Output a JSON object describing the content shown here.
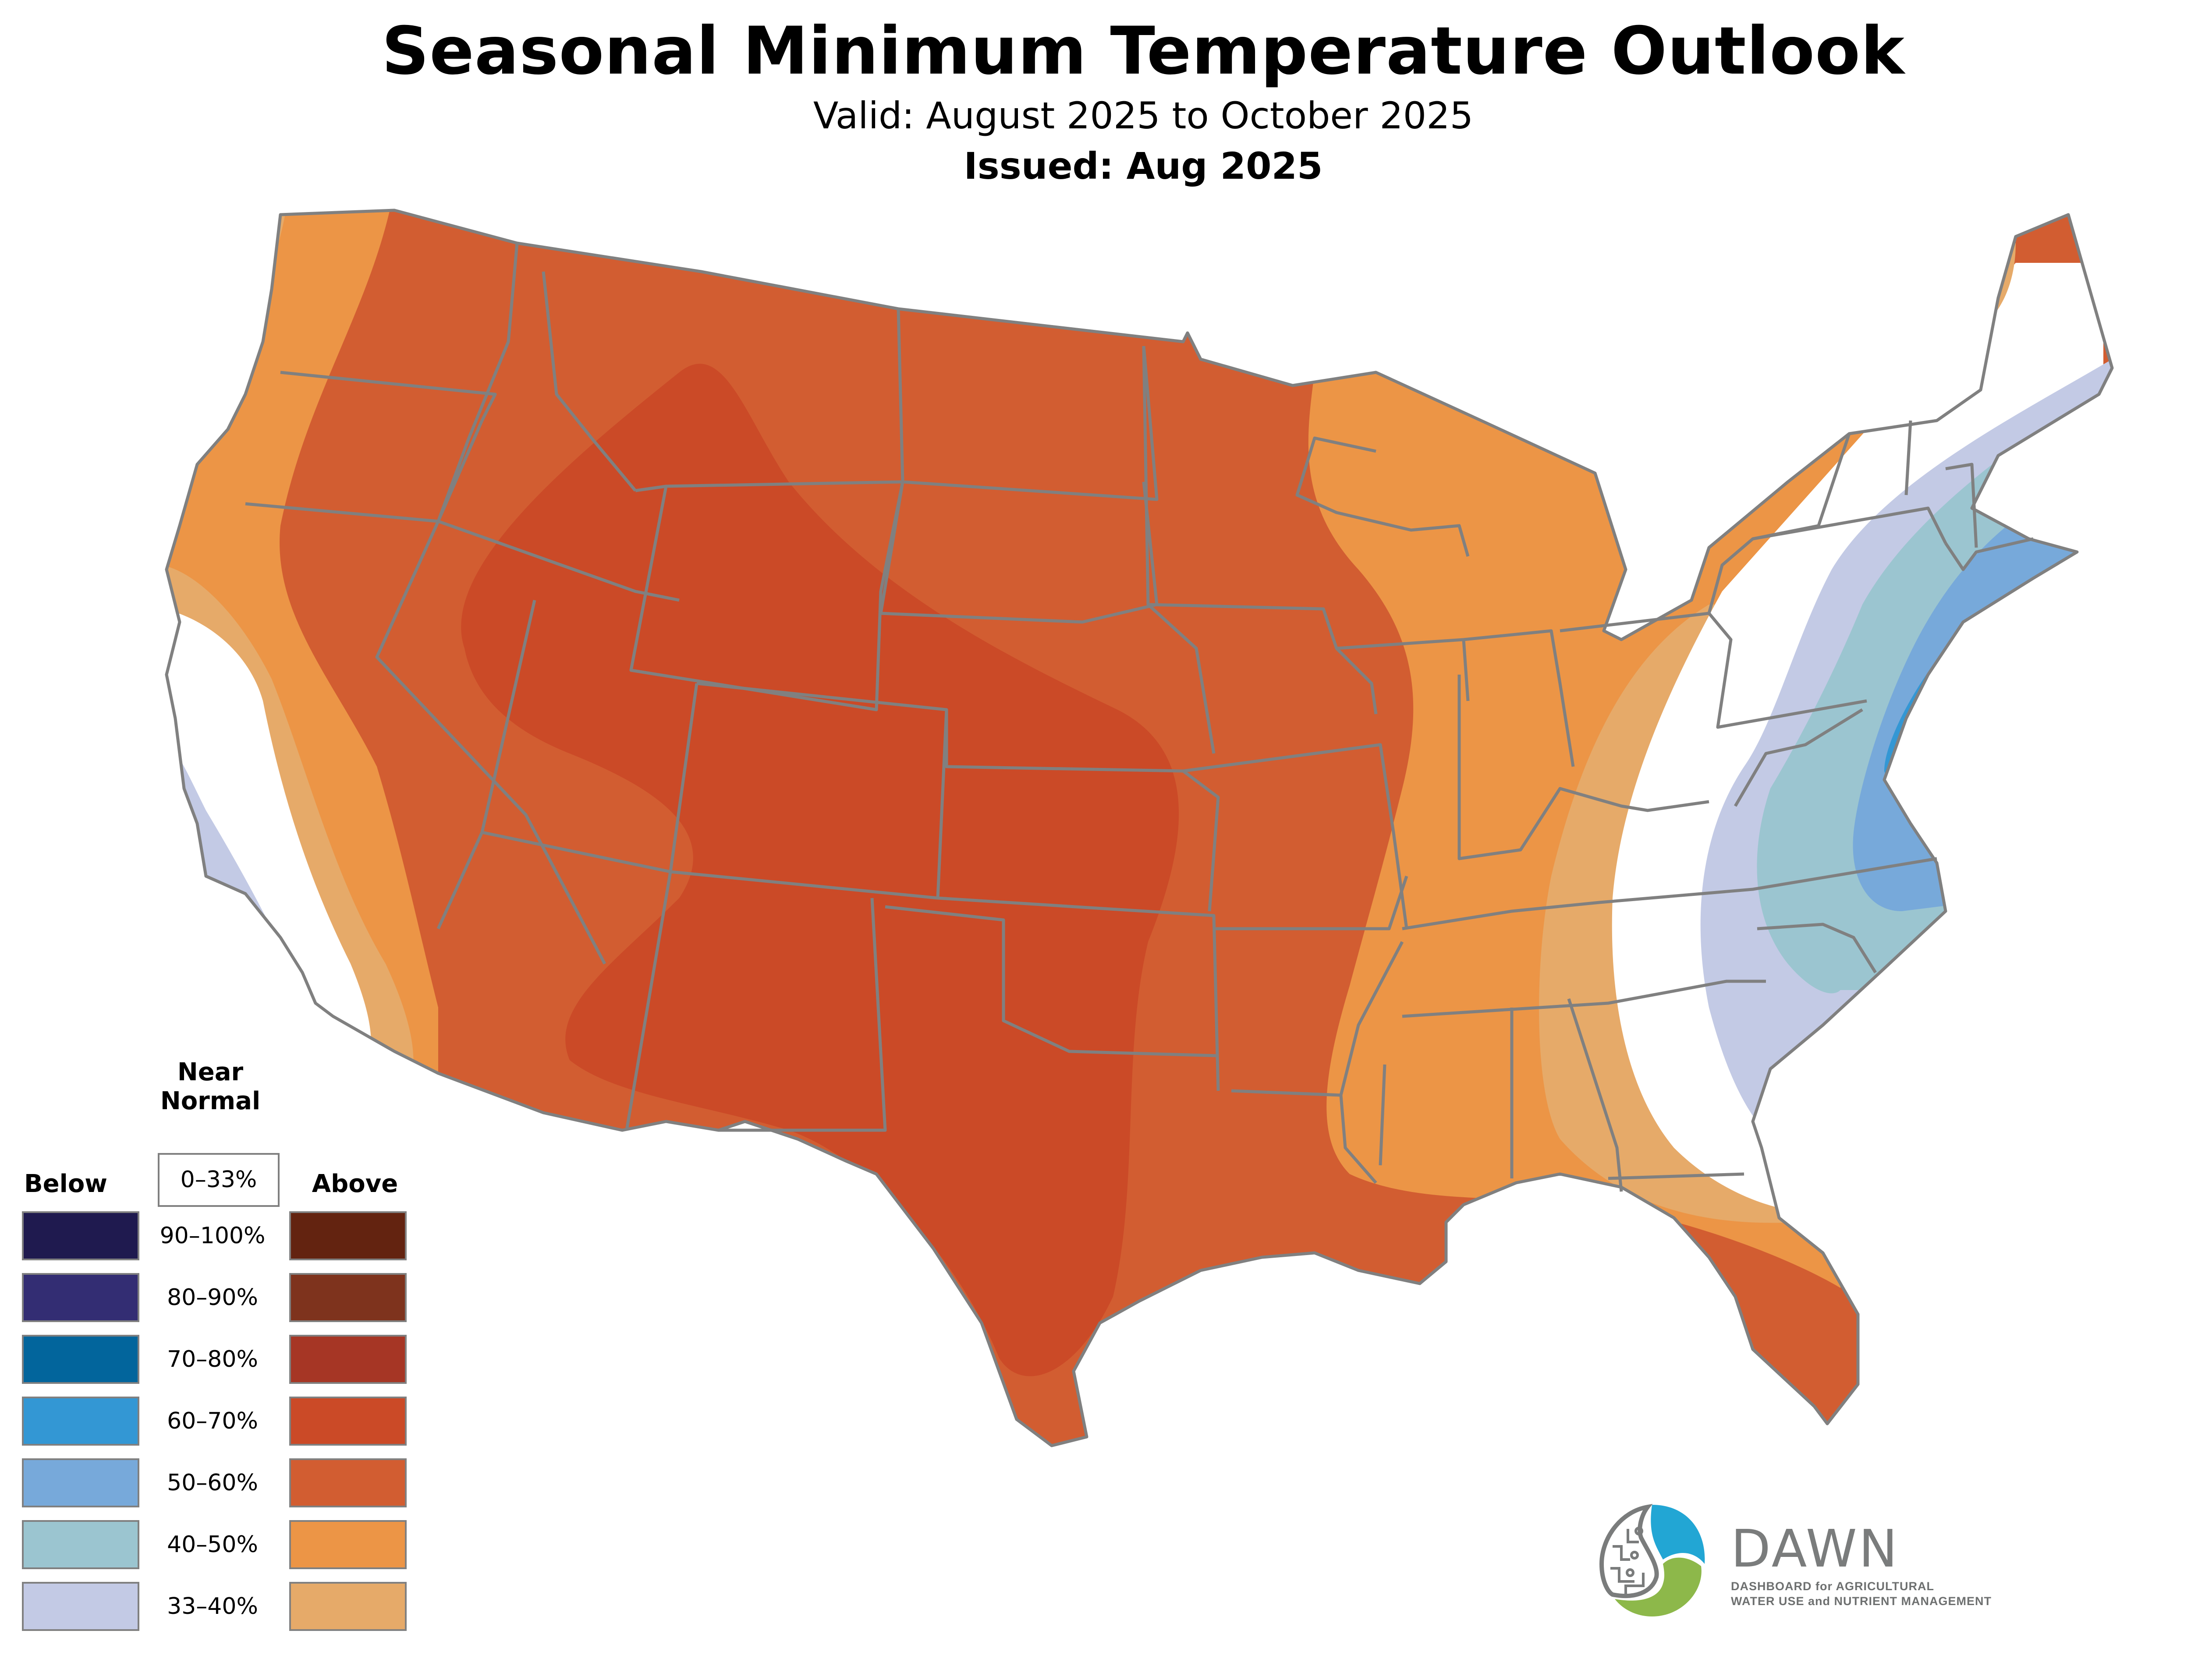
{
  "header": {
    "title": "Seasonal Minimum Temperature Outlook",
    "valid": "Valid: August 2025 to October 2025",
    "issued": "Issued: Aug 2025"
  },
  "legend": {
    "near_normal_heading": [
      "Near",
      "Normal"
    ],
    "near_normal_range": "0–33%",
    "below_heading": "Below",
    "above_heading": "Above",
    "rows": [
      {
        "range": "90–100%",
        "below_color": "#1f1a4f",
        "above_color": "#632310"
      },
      {
        "range": "80–90%",
        "below_color": "#332d73",
        "above_color": "#7e331d"
      },
      {
        "range": "70–80%",
        "below_color": "#02659c",
        "above_color": "#a63625"
      },
      {
        "range": "60–70%",
        "below_color": "#3397d4",
        "above_color": "#cb4a27"
      },
      {
        "range": "50–60%",
        "below_color": "#77a9da",
        "above_color": "#d25d31"
      },
      {
        "range": "40–50%",
        "below_color": "#9bc5d0",
        "above_color": "#ec9546"
      },
      {
        "range": "33–40%",
        "below_color": "#c3cae5",
        "above_color": "#e6aa69"
      }
    ]
  },
  "map": {
    "region": "Contiguous United States",
    "border_color": "#808080",
    "categories_shown": [
      {
        "category": "Above",
        "range": "60–70%",
        "color": "#cb4a27",
        "areas": [
          "Wyoming",
          "Utah",
          "Colorado",
          "Kansas",
          "Oklahoma",
          "New Mexico",
          "Texas",
          "Arizona (east)"
        ]
      },
      {
        "category": "Above",
        "range": "50–60%",
        "color": "#d25d31",
        "areas": [
          "Montana",
          "Idaho",
          "Nevada",
          "Dakotas",
          "Minnesota",
          "Iowa",
          "Missouri",
          "Arkansas",
          "Louisiana",
          "south Florida"
        ]
      },
      {
        "category": "Above",
        "range": "40–50%",
        "color": "#ec9546",
        "areas": [
          "Washington",
          "Oregon",
          "Wisconsin",
          "Michigan",
          "Illinois",
          "Indiana",
          "Tennessee",
          "Mississippi",
          "Alabama",
          "north Florida"
        ]
      },
      {
        "category": "Above",
        "range": "33–40%",
        "color": "#e6aa69",
        "areas": [
          "Pacific coast",
          "Ohio valley",
          "Georgia",
          "northern Maine"
        ]
      },
      {
        "category": "Below",
        "range": "33–40%",
        "color": "#c3cae5",
        "areas": [
          "coastal California",
          "Appalachians",
          "Carolinas",
          "Maine coast"
        ]
      },
      {
        "category": "Below",
        "range": "40–50%",
        "color": "#9bc5d0",
        "areas": [
          "Virginia",
          "North Carolina",
          "New England"
        ]
      },
      {
        "category": "Below",
        "range": "50–60%",
        "color": "#77a9da",
        "areas": [
          "Mid-Atlantic coast",
          "southern New England"
        ]
      },
      {
        "category": "Below",
        "range": "60–70%",
        "color": "#3397d4",
        "areas": [
          "New Jersey",
          "Delaware",
          "Long Island"
        ]
      }
    ]
  },
  "logo": {
    "name": "DAWN",
    "tagline_line1": "DASHBOARD for AGRICULTURAL",
    "tagline_line2": "WATER USE and NUTRIENT MANAGEMENT",
    "colors": {
      "blue": "#22a6d4",
      "green": "#8db84a",
      "gray": "#7a7c7c"
    }
  }
}
